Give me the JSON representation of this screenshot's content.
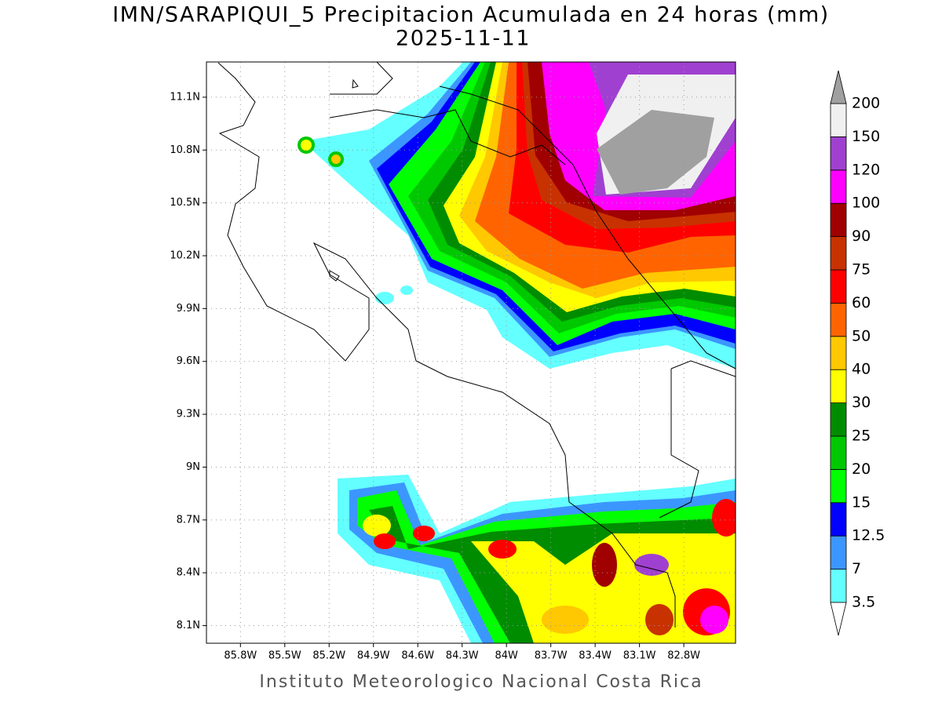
{
  "header": {
    "title": "IMN/SARAPIQUI_5 Precipitacion Acumulada en 24 horas (mm)",
    "date": "2025-11-11"
  },
  "map": {
    "lat_range": [
      8.0,
      11.3
    ],
    "lon_range": [
      -86.03,
      -82.45
    ],
    "grid": true,
    "lat_ticks": [
      {
        "value": 11.1,
        "label": "11.1N"
      },
      {
        "value": 10.8,
        "label": "10.8N"
      },
      {
        "value": 10.5,
        "label": "10.5N"
      },
      {
        "value": 10.2,
        "label": "10.2N"
      },
      {
        "value": 9.9,
        "label": "9.9N"
      },
      {
        "value": 9.6,
        "label": "9.6N"
      },
      {
        "value": 9.3,
        "label": "9.3N"
      },
      {
        "value": 9,
        "label": "9N"
      },
      {
        "value": 8.7,
        "label": "8.7N"
      },
      {
        "value": 8.4,
        "label": "8.4N"
      },
      {
        "value": 8.1,
        "label": "8.1N"
      }
    ],
    "lon_ticks": [
      {
        "value": -85.8,
        "label": "85.8W"
      },
      {
        "value": -85.5,
        "label": "85.5W"
      },
      {
        "value": -85.2,
        "label": "85.2W"
      },
      {
        "value": -84.9,
        "label": "84.9W"
      },
      {
        "value": -84.6,
        "label": "84.6W"
      },
      {
        "value": -84.3,
        "label": "84.3W"
      },
      {
        "value": -84,
        "label": "84W"
      },
      {
        "value": -83.7,
        "label": "83.7W"
      },
      {
        "value": -83.4,
        "label": "83.4W"
      },
      {
        "value": -83.1,
        "label": "83.1W"
      },
      {
        "value": -82.8,
        "label": "82.8W"
      }
    ]
  },
  "legend": {
    "levels": [
      3.5,
      7,
      12.5,
      15,
      20,
      25,
      30,
      40,
      50,
      60,
      75,
      90,
      100,
      120,
      150,
      200
    ],
    "colors": [
      "#64ffff",
      "#3c96ff",
      "#0000ff",
      "#00ff00",
      "#00c800",
      "#008c00",
      "#ffff00",
      "#ffc800",
      "#ff6400",
      "#ff0000",
      "#c83200",
      "#a00000",
      "#ff00ff",
      "#a040d0",
      "#f0f0f0"
    ],
    "under_color": "#ffffff",
    "over_color": "#a0a0a0"
  },
  "footer": "Instituto Meteorologico Nacional Costa Rica"
}
